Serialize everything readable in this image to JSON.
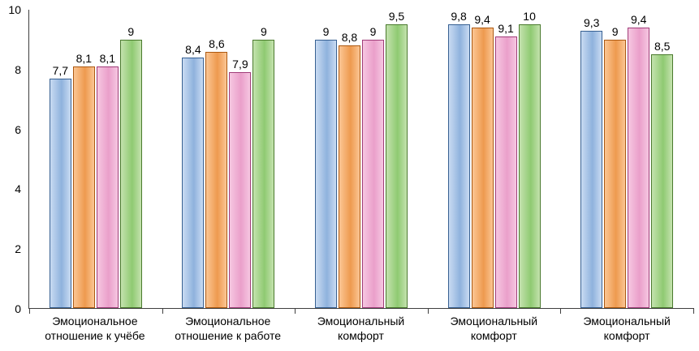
{
  "chart_data": {
    "type": "bar",
    "title": "",
    "xlabel": "",
    "ylabel": "",
    "ylim": [
      0,
      10
    ],
    "yticks": [
      0,
      2,
      4,
      6,
      8,
      10
    ],
    "grid": false,
    "legend": "none",
    "decimal_separator": ",",
    "categories": [
      "Эмоциональное отношение к учёбе",
      "Эмоциональное отношение к работе",
      "Эмоциональный комфорт",
      "Эмоциональный комфорт",
      "Эмоциональный комфорт"
    ],
    "series": [
      {
        "name": "series-blue",
        "fill_light": "#c9dbf2",
        "fill_dark": "#8fb2dd",
        "border": "#376092",
        "values": [
          7.7,
          8.4,
          9,
          9.8,
          9.3
        ]
      },
      {
        "name": "series-orange",
        "fill_light": "#fbc694",
        "fill_dark": "#ee9a4f",
        "border": "#ac5810",
        "values": [
          8.1,
          8.6,
          8.8,
          9.4,
          9
        ]
      },
      {
        "name": "series-pink",
        "fill_light": "#f6c7e1",
        "fill_dark": "#ea9fca",
        "border": "#a03c78",
        "values": [
          8.1,
          7.9,
          9,
          9.1,
          9.4
        ]
      },
      {
        "name": "series-green",
        "fill_light": "#c4e2ae",
        "fill_dark": "#8fca72",
        "border": "#4a7a2d",
        "values": [
          9,
          9,
          9.5,
          10,
          8.5
        ]
      }
    ]
  }
}
